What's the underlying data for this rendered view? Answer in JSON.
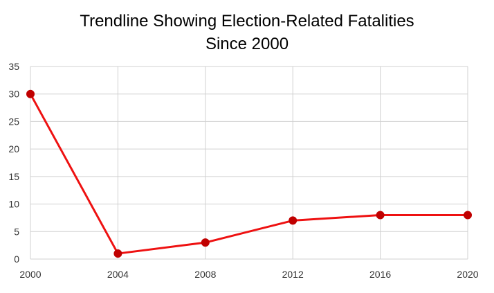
{
  "chart_data": {
    "type": "line",
    "title_line1": "Trendline  Showing Election-Related Fatalities",
    "title_line2": "Since 2000",
    "x": [
      "2000",
      "2004",
      "2008",
      "2012",
      "2016",
      "2020"
    ],
    "series": [
      {
        "values": [
          30,
          1,
          3,
          7,
          8,
          8
        ],
        "color": "#ee1111",
        "marker_color": "#c00000"
      }
    ],
    "ylim": [
      0,
      35
    ],
    "y_ticks": [
      0,
      5,
      10,
      15,
      20,
      25,
      30,
      35
    ],
    "grid": "both",
    "legend": "none",
    "xlabel": "",
    "ylabel": ""
  }
}
